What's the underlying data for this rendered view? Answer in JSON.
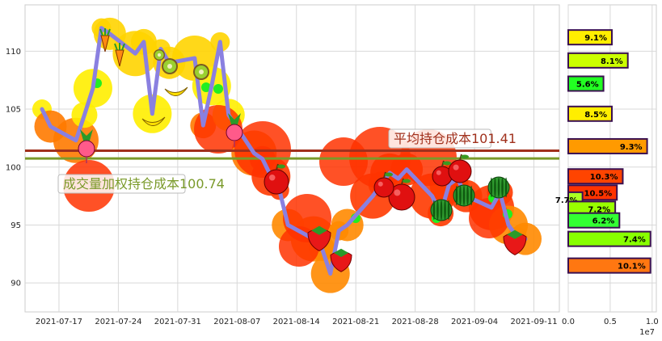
{
  "chart_data": [
    {
      "type": "line",
      "title": "",
      "xlabel": "",
      "ylabel": "",
      "xlim": [
        "2021-07-13",
        "2021-09-14"
      ],
      "ylim": [
        87.5,
        114
      ],
      "grid": true,
      "x_ticks": [
        "2021-07-17",
        "2021-07-24",
        "2021-07-31",
        "2021-08-07",
        "2021-08-14",
        "2021-08-21",
        "2021-08-28",
        "2021-09-04",
        "2021-09-11"
      ],
      "y_ticks": [
        90,
        95,
        100,
        105,
        110
      ],
      "series": [
        {
          "color": "#8a80e0",
          "x": [
            "2021-07-15",
            "2021-07-16",
            "2021-07-19",
            "2021-07-20",
            "2021-07-21",
            "2021-07-22",
            "2021-07-23",
            "2021-07-26",
            "2021-07-27",
            "2021-07-28",
            "2021-07-29",
            "2021-07-30",
            "2021-08-02",
            "2021-08-03",
            "2021-08-04",
            "2021-08-05",
            "2021-08-06",
            "2021-08-09",
            "2021-08-10",
            "2021-08-11",
            "2021-08-12",
            "2021-08-13",
            "2021-08-16",
            "2021-08-17",
            "2021-08-18",
            "2021-08-19",
            "2021-08-20",
            "2021-08-23",
            "2021-08-24",
            "2021-08-25",
            "2021-08-26",
            "2021-08-27",
            "2021-08-30",
            "2021-08-31",
            "2021-09-01",
            "2021-09-02",
            "2021-09-03",
            "2021-09-06",
            "2021-09-07",
            "2021-09-08",
            "2021-09-09",
            "2021-09-10"
          ],
          "values": [
            105.0,
            103.5,
            102.3,
            104.5,
            106.8,
            112.0,
            111.5,
            109.8,
            110.8,
            104.6,
            110.2,
            109.0,
            109.4,
            103.6,
            107.0,
            110.8,
            104.5,
            101.2,
            100.7,
            99.2,
            98.0,
            95.0,
            93.8,
            93.0,
            90.8,
            94.5,
            95.0,
            97.5,
            98.5,
            99.5,
            99.0,
            99.8,
            97.5,
            96.0,
            98.5,
            99.0,
            97.5,
            96.5,
            97.8,
            95.0,
            94.0,
            93.8
          ]
        }
      ],
      "annotations": [
        {
          "text": "平均持仓成本101.41",
          "value": 101.41,
          "color": "#a0301c"
        },
        {
          "text": "成交量加权持仓成本100.74",
          "value": 100.74,
          "color": "#7a9a2a"
        }
      ]
    },
    {
      "type": "bar",
      "orientation": "horizontal",
      "title": "",
      "xlabel": "",
      "ylabel": "",
      "xlim": [
        0,
        10500000
      ],
      "x_ticks": [
        "0.0",
        "0.5",
        "1.0"
      ],
      "x_scale_label": "1e7",
      "price_axis_shared": true,
      "bars": [
        {
          "price": 111.2,
          "value": 5200000,
          "label": "9.1%",
          "color": "#ffee00"
        },
        {
          "price": 109.2,
          "value": 7100000,
          "label": "8.1%",
          "color": "#ccff00"
        },
        {
          "price": 107.2,
          "value": 4200000,
          "label": "5.6%",
          "color": "#22ff22"
        },
        {
          "price": 104.6,
          "value": 5200000,
          "label": "8.5%",
          "color": "#ffee00"
        },
        {
          "price": 101.8,
          "value": 9400000,
          "label": "9.3%",
          "color": "#ff9a00"
        },
        {
          "price": 99.2,
          "value": 6500000,
          "label": "10.3%",
          "color": "#ff4400"
        },
        {
          "price": 97.8,
          "value": 5800000,
          "label": "10.5%",
          "color": "#ff3300"
        },
        {
          "price": 97.2,
          "value": 1700000,
          "label": "7.7%",
          "color": "#aaff22"
        },
        {
          "price": 96.4,
          "value": 5600000,
          "label": "7.2%",
          "color": "#99ff00"
        },
        {
          "price": 95.4,
          "value": 6100000,
          "label": "6.2%",
          "color": "#33ff33"
        },
        {
          "price": 93.8,
          "value": 9800000,
          "label": "7.4%",
          "color": "#88ff00"
        },
        {
          "price": 91.5,
          "value": 9800000,
          "label": "10.1%",
          "color": "#ff7711"
        }
      ]
    }
  ]
}
